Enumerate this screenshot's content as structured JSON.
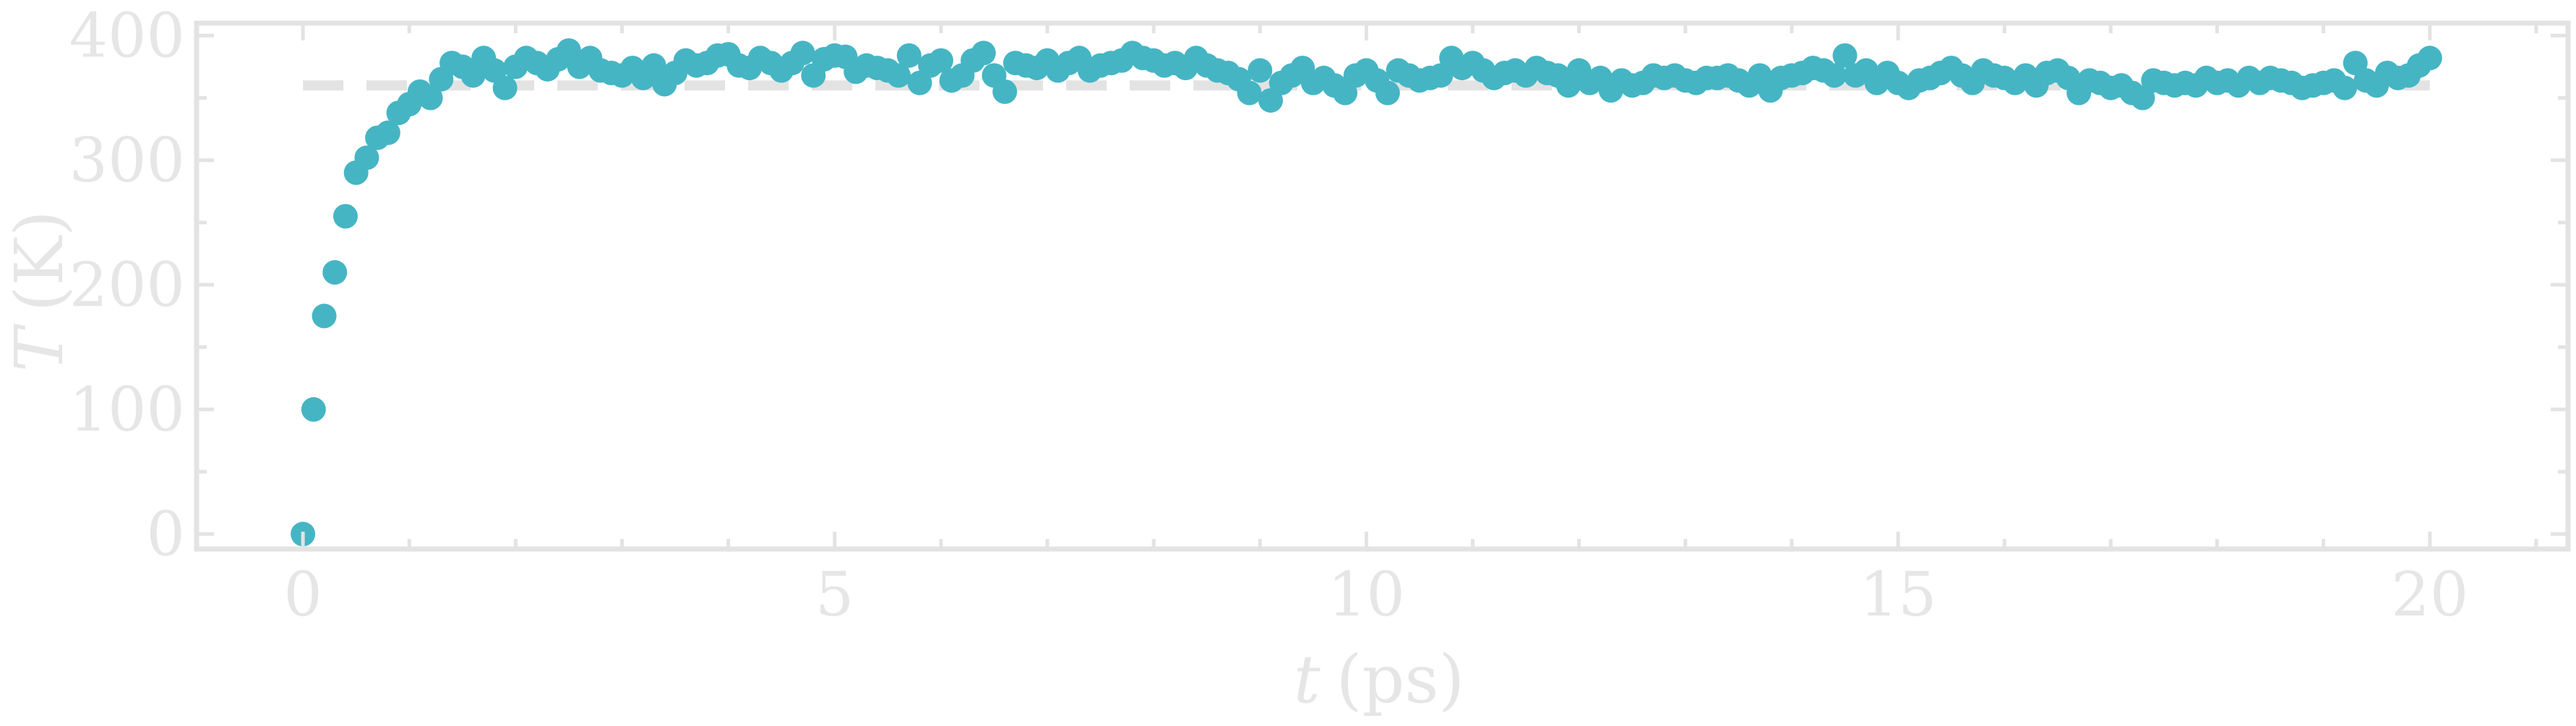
{
  "chart_data": {
    "type": "scatter",
    "xlabel_var": "t",
    "xlabel_unit": "(ps)",
    "ylabel_var": "T",
    "ylabel_unit": "(K)",
    "xlim": [
      -1,
      21.3
    ],
    "ylim": [
      -12,
      410
    ],
    "x_ticks": [
      0,
      5,
      10,
      15,
      20
    ],
    "x_tick_labels": [
      "0",
      "5",
      "10",
      "15",
      "20"
    ],
    "y_ticks": [
      0,
      100,
      200,
      300,
      400
    ],
    "y_tick_labels": [
      "0",
      "100",
      "200",
      "300",
      "400"
    ],
    "grid": false,
    "marker_color": "#45b5c4",
    "reference_line": {
      "y": 360,
      "style": "dashed",
      "color": "#e3e3e3"
    },
    "series": [
      {
        "x": [
          0.0,
          0.1,
          0.2,
          0.3,
          0.4,
          0.5,
          0.6,
          0.7,
          0.8,
          0.9,
          1.0,
          1.1,
          1.2,
          1.3,
          1.4,
          1.5,
          1.6,
          1.7,
          1.8,
          1.9,
          2.0,
          2.1,
          2.2,
          2.3,
          2.4,
          2.5,
          2.6,
          2.7,
          2.8,
          2.9,
          3.0,
          3.1,
          3.2,
          3.3,
          3.4,
          3.5,
          3.6,
          3.7,
          3.8,
          3.9,
          4.0,
          4.1,
          4.2,
          4.3,
          4.4,
          4.5,
          4.6,
          4.7,
          4.8,
          4.9,
          5.0,
          5.1,
          5.2,
          5.3,
          5.4,
          5.5,
          5.6,
          5.7,
          5.8,
          5.9,
          6.0,
          6.1,
          6.2,
          6.3,
          6.4,
          6.5,
          6.6,
          6.7,
          6.8,
          6.9,
          7.0,
          7.1,
          7.2,
          7.3,
          7.4,
          7.5,
          7.6,
          7.7,
          7.8,
          7.9,
          8.0,
          8.1,
          8.2,
          8.3,
          8.4,
          8.5,
          8.6,
          8.7,
          8.8,
          8.9,
          9.0,
          9.1,
          9.2,
          9.3,
          9.4,
          9.5,
          9.6,
          9.7,
          9.8,
          9.9,
          10.0,
          10.1,
          10.2,
          10.3,
          10.4,
          10.5,
          10.6,
          10.7,
          10.8,
          10.9,
          11.0,
          11.1,
          11.2,
          11.3,
          11.4,
          11.5,
          11.6,
          11.7,
          11.8,
          11.9,
          12.0,
          12.1,
          12.2,
          12.3,
          12.4,
          12.5,
          12.6,
          12.7,
          12.8,
          12.9,
          13.0,
          13.1,
          13.2,
          13.3,
          13.4,
          13.5,
          13.6,
          13.7,
          13.8,
          13.9,
          14.0,
          14.1,
          14.2,
          14.3,
          14.4,
          14.5,
          14.6,
          14.7,
          14.8,
          14.9,
          15.0,
          15.1,
          15.2,
          15.3,
          15.4,
          15.5,
          15.6,
          15.7,
          15.8,
          15.9,
          16.0,
          16.1,
          16.2,
          16.3,
          16.4,
          16.5,
          16.6,
          16.7,
          16.8,
          16.9,
          17.0,
          17.1,
          17.2,
          17.3,
          17.4,
          17.5,
          17.6,
          17.7,
          17.8,
          17.9,
          18.0,
          18.1,
          18.2,
          18.3,
          18.4,
          18.5,
          18.6,
          18.7,
          18.8,
          18.9,
          19.0,
          19.1,
          19.2,
          19.3,
          19.4,
          19.5,
          19.6,
          19.7,
          19.8,
          19.9,
          20.0
        ],
        "y": [
          0,
          100,
          175,
          210,
          255,
          290,
          302,
          318,
          322,
          338,
          345,
          355,
          350,
          365,
          378,
          375,
          368,
          382,
          372,
          358,
          375,
          382,
          378,
          373,
          381,
          388,
          375,
          382,
          372,
          370,
          368,
          374,
          366,
          376,
          361,
          370,
          380,
          376,
          378,
          384,
          385,
          376,
          374,
          382,
          378,
          372,
          378,
          386,
          368,
          381,
          384,
          383,
          371,
          376,
          374,
          372,
          368,
          384,
          362,
          376,
          380,
          364,
          368,
          380,
          386,
          368,
          355,
          378,
          376,
          374,
          380,
          372,
          378,
          382,
          372,
          376,
          378,
          380,
          386,
          382,
          380,
          376,
          378,
          374,
          382,
          376,
          372,
          370,
          365,
          354,
          372,
          348,
          362,
          368,
          374,
          362,
          366,
          360,
          354,
          368,
          372,
          364,
          354,
          372,
          368,
          364,
          366,
          368,
          382,
          374,
          378,
          372,
          366,
          370,
          372,
          368,
          374,
          370,
          368,
          360,
          372,
          362,
          366,
          356,
          364,
          360,
          362,
          368,
          366,
          368,
          364,
          362,
          366,
          366,
          368,
          364,
          360,
          368,
          356,
          366,
          368,
          370,
          374,
          372,
          368,
          384,
          368,
          372,
          362,
          370,
          362,
          358,
          364,
          366,
          370,
          374,
          368,
          362,
          372,
          368,
          366,
          362,
          368,
          360,
          370,
          372,
          366,
          354,
          364,
          362,
          358,
          360,
          354,
          350,
          364,
          362,
          360,
          362,
          360,
          366,
          362,
          364,
          360,
          366,
          362,
          366,
          364,
          362,
          358,
          360,
          362,
          364,
          358,
          378,
          364,
          360,
          370,
          366,
          368,
          376,
          382
        ]
      }
    ]
  }
}
